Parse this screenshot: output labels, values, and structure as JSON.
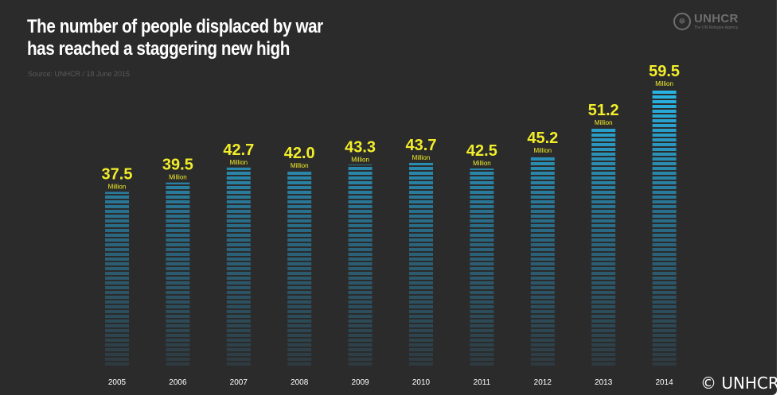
{
  "header": {
    "title_line1": "The number of people displaced by war",
    "title_line2": "has reached a staggering new high",
    "source": "Source: UNHCR / 18 June 2015"
  },
  "logo": {
    "name": "UNHCR",
    "tagline": "The UN Refugee Agency",
    "icon": "unhcr-emblem-icon"
  },
  "copyright": "© UNHCR",
  "colors": {
    "background": "#2b2b2b",
    "bar_top": "#29b6e6",
    "bar_bottom": "#2e3a40",
    "value_label": "#f2ee2a",
    "unit_label": "#f2ee2a",
    "tick_label": "#ffffff"
  },
  "chart_data": {
    "type": "bar",
    "title": "The number of people displaced by war has reached a staggering new high",
    "categories": [
      "2005",
      "2006",
      "2007",
      "2008",
      "2009",
      "2010",
      "2011",
      "2012",
      "2013",
      "2014"
    ],
    "values": [
      37.5,
      39.5,
      42.7,
      42.0,
      43.3,
      43.7,
      42.5,
      45.2,
      51.2,
      59.5
    ],
    "value_labels": [
      "37.5",
      "39.5",
      "42.7",
      "42.0",
      "43.3",
      "43.7",
      "42.5",
      "45.2",
      "51.2",
      "59.5"
    ],
    "unit_label": "Million",
    "xlabel": "",
    "ylabel": "",
    "ylim": [
      0,
      59.5
    ],
    "grid": false,
    "legend": "none"
  }
}
